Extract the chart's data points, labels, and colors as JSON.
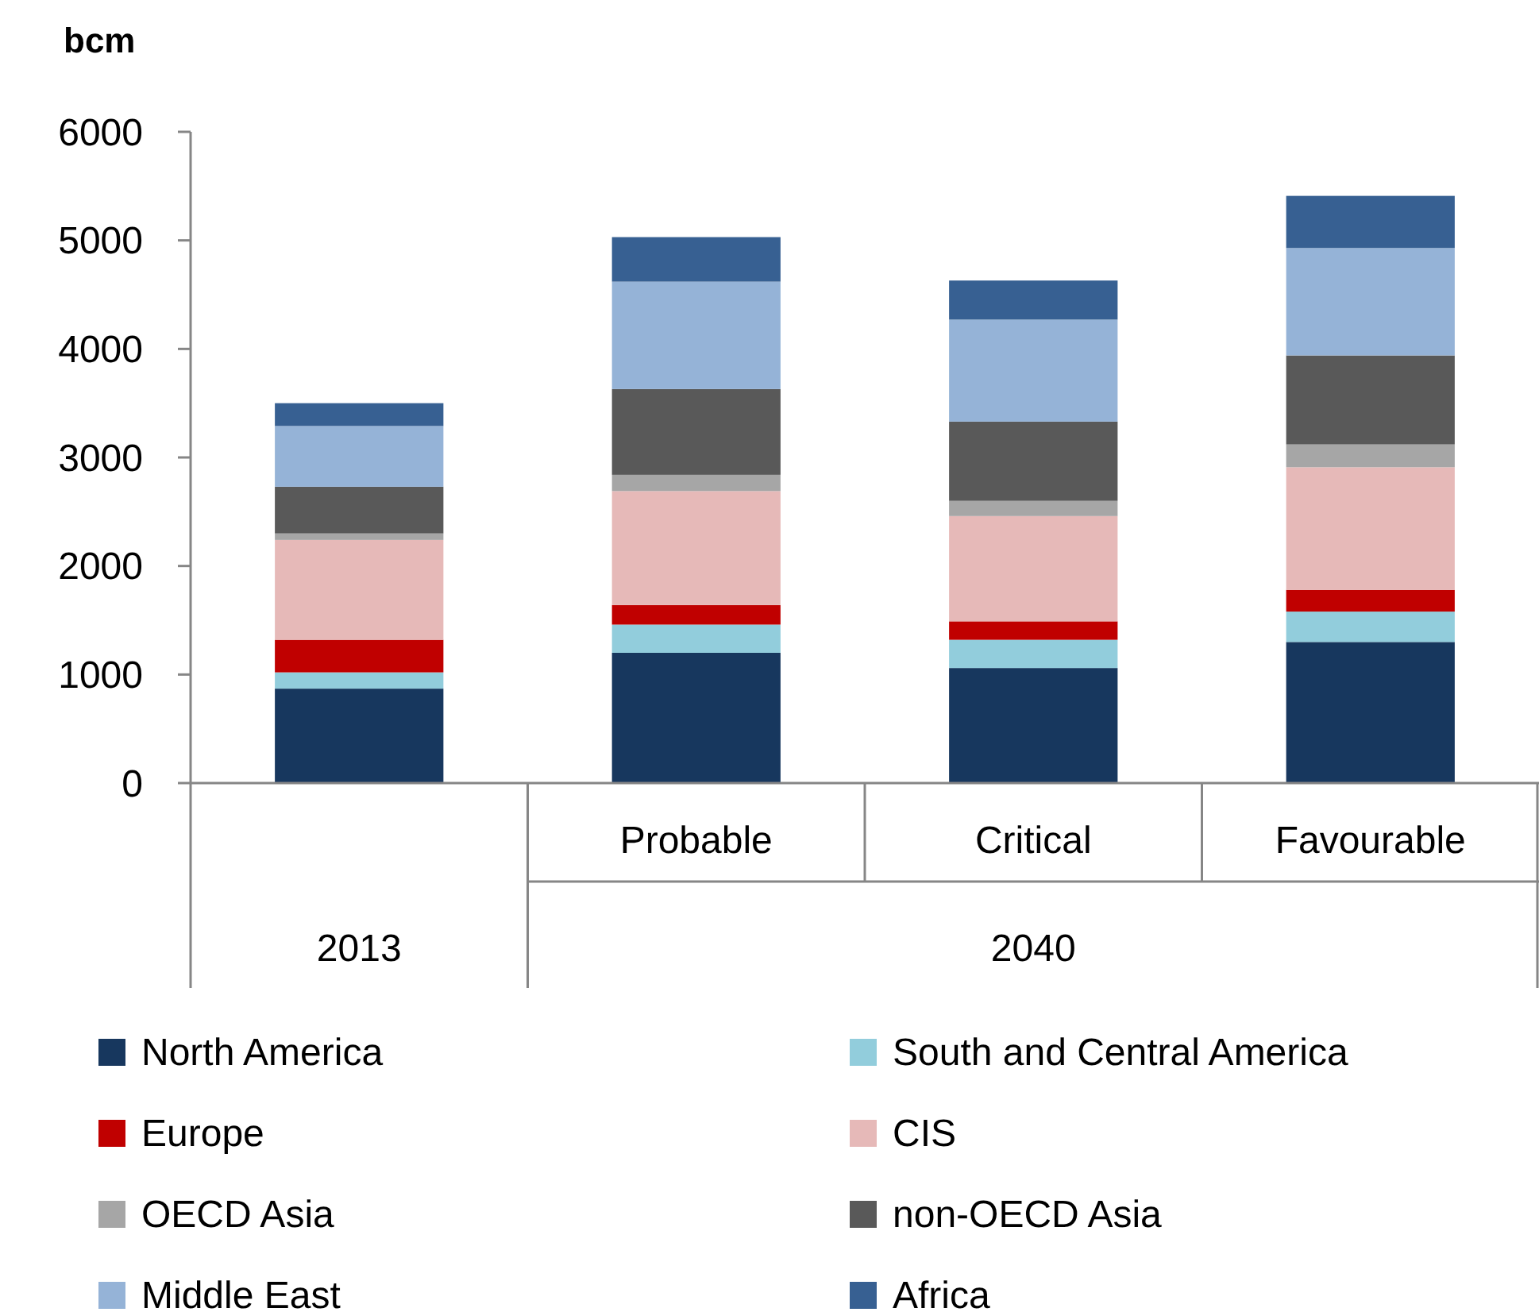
{
  "chart_data": {
    "type": "bar",
    "stacked": true,
    "ylabel": "bcm",
    "categories": [
      null,
      "Probable",
      "Critical",
      "Favourable"
    ],
    "annotations": [
      "2013",
      "2040"
    ],
    "series": [
      {
        "name": "North America",
        "color": "#17375e",
        "values": [
          870,
          1200,
          1060,
          1300
        ]
      },
      {
        "name": "South and Central America",
        "color": "#92cddc",
        "values": [
          150,
          260,
          260,
          280
        ]
      },
      {
        "name": "Europe",
        "color": "#c00000",
        "values": [
          300,
          180,
          170,
          200
        ]
      },
      {
        "name": "CIS",
        "color": "#e6b9b8",
        "values": [
          920,
          1050,
          970,
          1130
        ]
      },
      {
        "name": "OECD Asia",
        "color": "#a6a6a6",
        "values": [
          60,
          150,
          140,
          210
        ]
      },
      {
        "name": "non-OECD Asia",
        "color": "#595959",
        "values": [
          430,
          790,
          730,
          820
        ]
      },
      {
        "name": "Middle East",
        "color": "#95b3d7",
        "values": [
          560,
          990,
          940,
          990
        ]
      },
      {
        "name": "Africa",
        "color": "#376092",
        "values": [
          210,
          410,
          360,
          480
        ]
      }
    ],
    "ylim": [
      0,
      6000
    ],
    "yticks": [
      0,
      1000,
      2000,
      3000,
      4000,
      5000,
      6000
    ],
    "grid": false,
    "legend": "bottom"
  }
}
